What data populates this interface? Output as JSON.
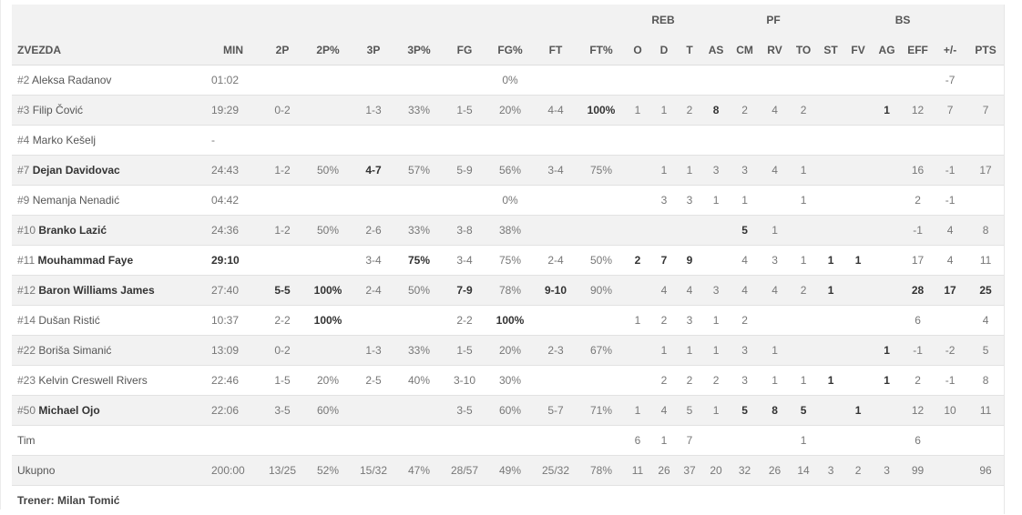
{
  "group_headers": {
    "reb": "REB",
    "pf": "PF",
    "bs": "BS"
  },
  "columns": [
    "ZVEZDA",
    "MIN",
    "2P",
    "2P%",
    "3P",
    "3P%",
    "FG",
    "FG%",
    "FT",
    "FT%",
    "O",
    "D",
    "T",
    "AS",
    "CM",
    "RV",
    "TO",
    "ST",
    "FV",
    "AG",
    "EFF",
    "+/-",
    "PTS"
  ],
  "players": [
    {
      "num": "#2",
      "name": "Aleksa Radanov",
      "starter": false,
      "cells": [
        "01:02",
        "",
        "",
        "",
        "",
        "",
        "0%",
        "",
        "",
        "",
        "",
        "",
        "",
        "",
        "",
        "",
        "",
        "",
        "",
        "",
        "-7",
        ""
      ],
      "bold": []
    },
    {
      "num": "#3",
      "name": "Filip Čović",
      "starter": false,
      "cells": [
        "19:29",
        "0-2",
        "",
        "1-3",
        "33%",
        "1-5",
        "20%",
        "4-4",
        "100%",
        "1",
        "1",
        "2",
        "8",
        "2",
        "4",
        "2",
        "",
        "",
        "1",
        "12",
        "7",
        "7"
      ],
      "bold": [
        8,
        12,
        18
      ]
    },
    {
      "num": "#4",
      "name": "Marko Kešelj",
      "starter": false,
      "cells": [
        "-",
        "",
        "",
        "",
        "",
        "",
        "",
        "",
        "",
        "",
        "",
        "",
        "",
        "",
        "",
        "",
        "",
        "",
        "",
        "",
        "",
        ""
      ],
      "bold": []
    },
    {
      "num": "#7",
      "name": "Dejan Davidovac",
      "starter": true,
      "cells": [
        "24:43",
        "1-2",
        "50%",
        "4-7",
        "57%",
        "5-9",
        "56%",
        "3-4",
        "75%",
        "",
        "1",
        "1",
        "3",
        "3",
        "4",
        "1",
        "",
        "",
        "",
        "16",
        "-1",
        "17"
      ],
      "bold": [
        3
      ]
    },
    {
      "num": "#9",
      "name": "Nemanja Nenadić",
      "starter": false,
      "cells": [
        "04:42",
        "",
        "",
        "",
        "",
        "",
        "0%",
        "",
        "",
        "",
        "3",
        "3",
        "1",
        "1",
        "",
        "1",
        "",
        "",
        "",
        "2",
        "-1",
        ""
      ],
      "bold": []
    },
    {
      "num": "#10",
      "name": "Branko Lazić",
      "starter": true,
      "cells": [
        "24:36",
        "1-2",
        "50%",
        "2-6",
        "33%",
        "3-8",
        "38%",
        "",
        "",
        "",
        "",
        "",
        "",
        "5",
        "1",
        "",
        "",
        "",
        "",
        "-1",
        "4",
        "8"
      ],
      "bold": [
        13
      ]
    },
    {
      "num": "#11",
      "name": "Mouhammad Faye",
      "starter": true,
      "cells": [
        "29:10",
        "",
        "",
        "3-4",
        "75%",
        "3-4",
        "75%",
        "2-4",
        "50%",
        "2",
        "7",
        "9",
        "",
        "4",
        "3",
        "1",
        "1",
        "1",
        "",
        "17",
        "4",
        "11"
      ],
      "bold": [
        0,
        4,
        9,
        10,
        11,
        16,
        17
      ]
    },
    {
      "num": "#12",
      "name": "Baron Williams James",
      "starter": true,
      "cells": [
        "27:40",
        "5-5",
        "100%",
        "2-4",
        "50%",
        "7-9",
        "78%",
        "9-10",
        "90%",
        "",
        "4",
        "4",
        "3",
        "4",
        "4",
        "2",
        "1",
        "",
        "",
        "28",
        "17",
        "25"
      ],
      "bold": [
        1,
        2,
        5,
        7,
        16,
        19,
        20,
        21
      ]
    },
    {
      "num": "#14",
      "name": "Dušan Ristić",
      "starter": false,
      "cells": [
        "10:37",
        "2-2",
        "100%",
        "",
        "",
        "2-2",
        "100%",
        "",
        "",
        "1",
        "2",
        "3",
        "1",
        "2",
        "",
        "",
        "",
        "",
        "",
        "6",
        "",
        "4"
      ],
      "bold": [
        2,
        6
      ]
    },
    {
      "num": "#22",
      "name": "Boriša Simanić",
      "starter": false,
      "cells": [
        "13:09",
        "0-2",
        "",
        "1-3",
        "33%",
        "1-5",
        "20%",
        "2-3",
        "67%",
        "",
        "1",
        "1",
        "1",
        "3",
        "1",
        "",
        "",
        "",
        "1",
        "-1",
        "-2",
        "5"
      ],
      "bold": [
        18
      ]
    },
    {
      "num": "#23",
      "name": "Kelvin Creswell Rivers",
      "starter": false,
      "cells": [
        "22:46",
        "1-5",
        "20%",
        "2-5",
        "40%",
        "3-10",
        "30%",
        "",
        "",
        "",
        "2",
        "2",
        "2",
        "3",
        "1",
        "1",
        "1",
        "",
        "1",
        "2",
        "-1",
        "8"
      ],
      "bold": [
        16,
        18
      ]
    },
    {
      "num": "#50",
      "name": "Michael Ojo",
      "starter": true,
      "cells": [
        "22:06",
        "3-5",
        "60%",
        "",
        "",
        "3-5",
        "60%",
        "5-7",
        "71%",
        "1",
        "4",
        "5",
        "1",
        "5",
        "8",
        "5",
        "",
        "1",
        "",
        "12",
        "10",
        "11"
      ],
      "bold": [
        13,
        14,
        15,
        17
      ]
    }
  ],
  "team_row": {
    "label": "Tim",
    "cells": [
      "",
      "",
      "",
      "",
      "",
      "",
      "",
      "",
      "",
      "6",
      "1",
      "7",
      "",
      "",
      "",
      "1",
      "",
      "",
      "",
      "6",
      "",
      ""
    ]
  },
  "total_row": {
    "label": "Ukupno",
    "cells": [
      "200:00",
      "13/25",
      "52%",
      "15/32",
      "47%",
      "28/57",
      "49%",
      "25/32",
      "78%",
      "11",
      "26",
      "37",
      "20",
      "32",
      "26",
      "14",
      "3",
      "2",
      "3",
      "99",
      "",
      "96"
    ]
  },
  "coach": "Trener: Milan Tomić"
}
